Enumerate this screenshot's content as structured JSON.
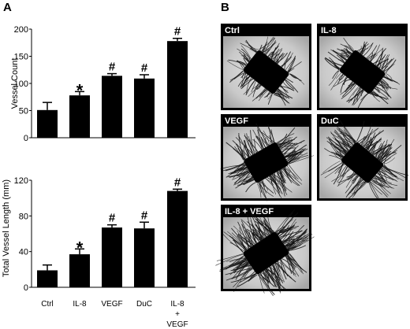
{
  "panel_labels": {
    "a": "A",
    "b": "B"
  },
  "significance_marks": {
    "star": "*",
    "hash": "#"
  },
  "chart_data": [
    {
      "type": "bar",
      "ylabel": "Vessel Count",
      "ylim": [
        0,
        200
      ],
      "yticks": [
        0,
        50,
        100,
        150,
        200
      ],
      "categories": [
        "Ctrl",
        "IL-8",
        "VEGF",
        "DuC",
        "IL-8 + VEGF"
      ],
      "values": [
        51,
        78,
        114,
        109,
        178
      ],
      "errors": [
        14,
        7,
        4,
        7,
        5
      ],
      "annotations": [
        "",
        "*",
        "#",
        "#",
        "#"
      ]
    },
    {
      "type": "bar",
      "ylabel": "Total Vessel Length (mm)",
      "ylim": [
        0,
        120
      ],
      "yticks": [
        0,
        40,
        80,
        120
      ],
      "categories": [
        "Ctrl",
        "IL-8",
        "VEGF",
        "DuC",
        "IL-8 + VEGF"
      ],
      "values": [
        19,
        37,
        67,
        66,
        108
      ],
      "errors": [
        6,
        6,
        3,
        7,
        2
      ],
      "annotations": [
        "",
        "*",
        "#",
        "#",
        "#"
      ],
      "xtick_labels": [
        [
          "Ctrl"
        ],
        [
          "IL-8"
        ],
        [
          "VEGF"
        ],
        [
          "DuC"
        ],
        [
          "IL-8",
          "+",
          "VEGF"
        ]
      ]
    }
  ],
  "micrographs": [
    {
      "label": "Ctrl"
    },
    {
      "label": "IL-8"
    },
    {
      "label": "VEGF"
    },
    {
      "label": "DuC"
    },
    {
      "label": "IL-8 + VEGF"
    }
  ]
}
